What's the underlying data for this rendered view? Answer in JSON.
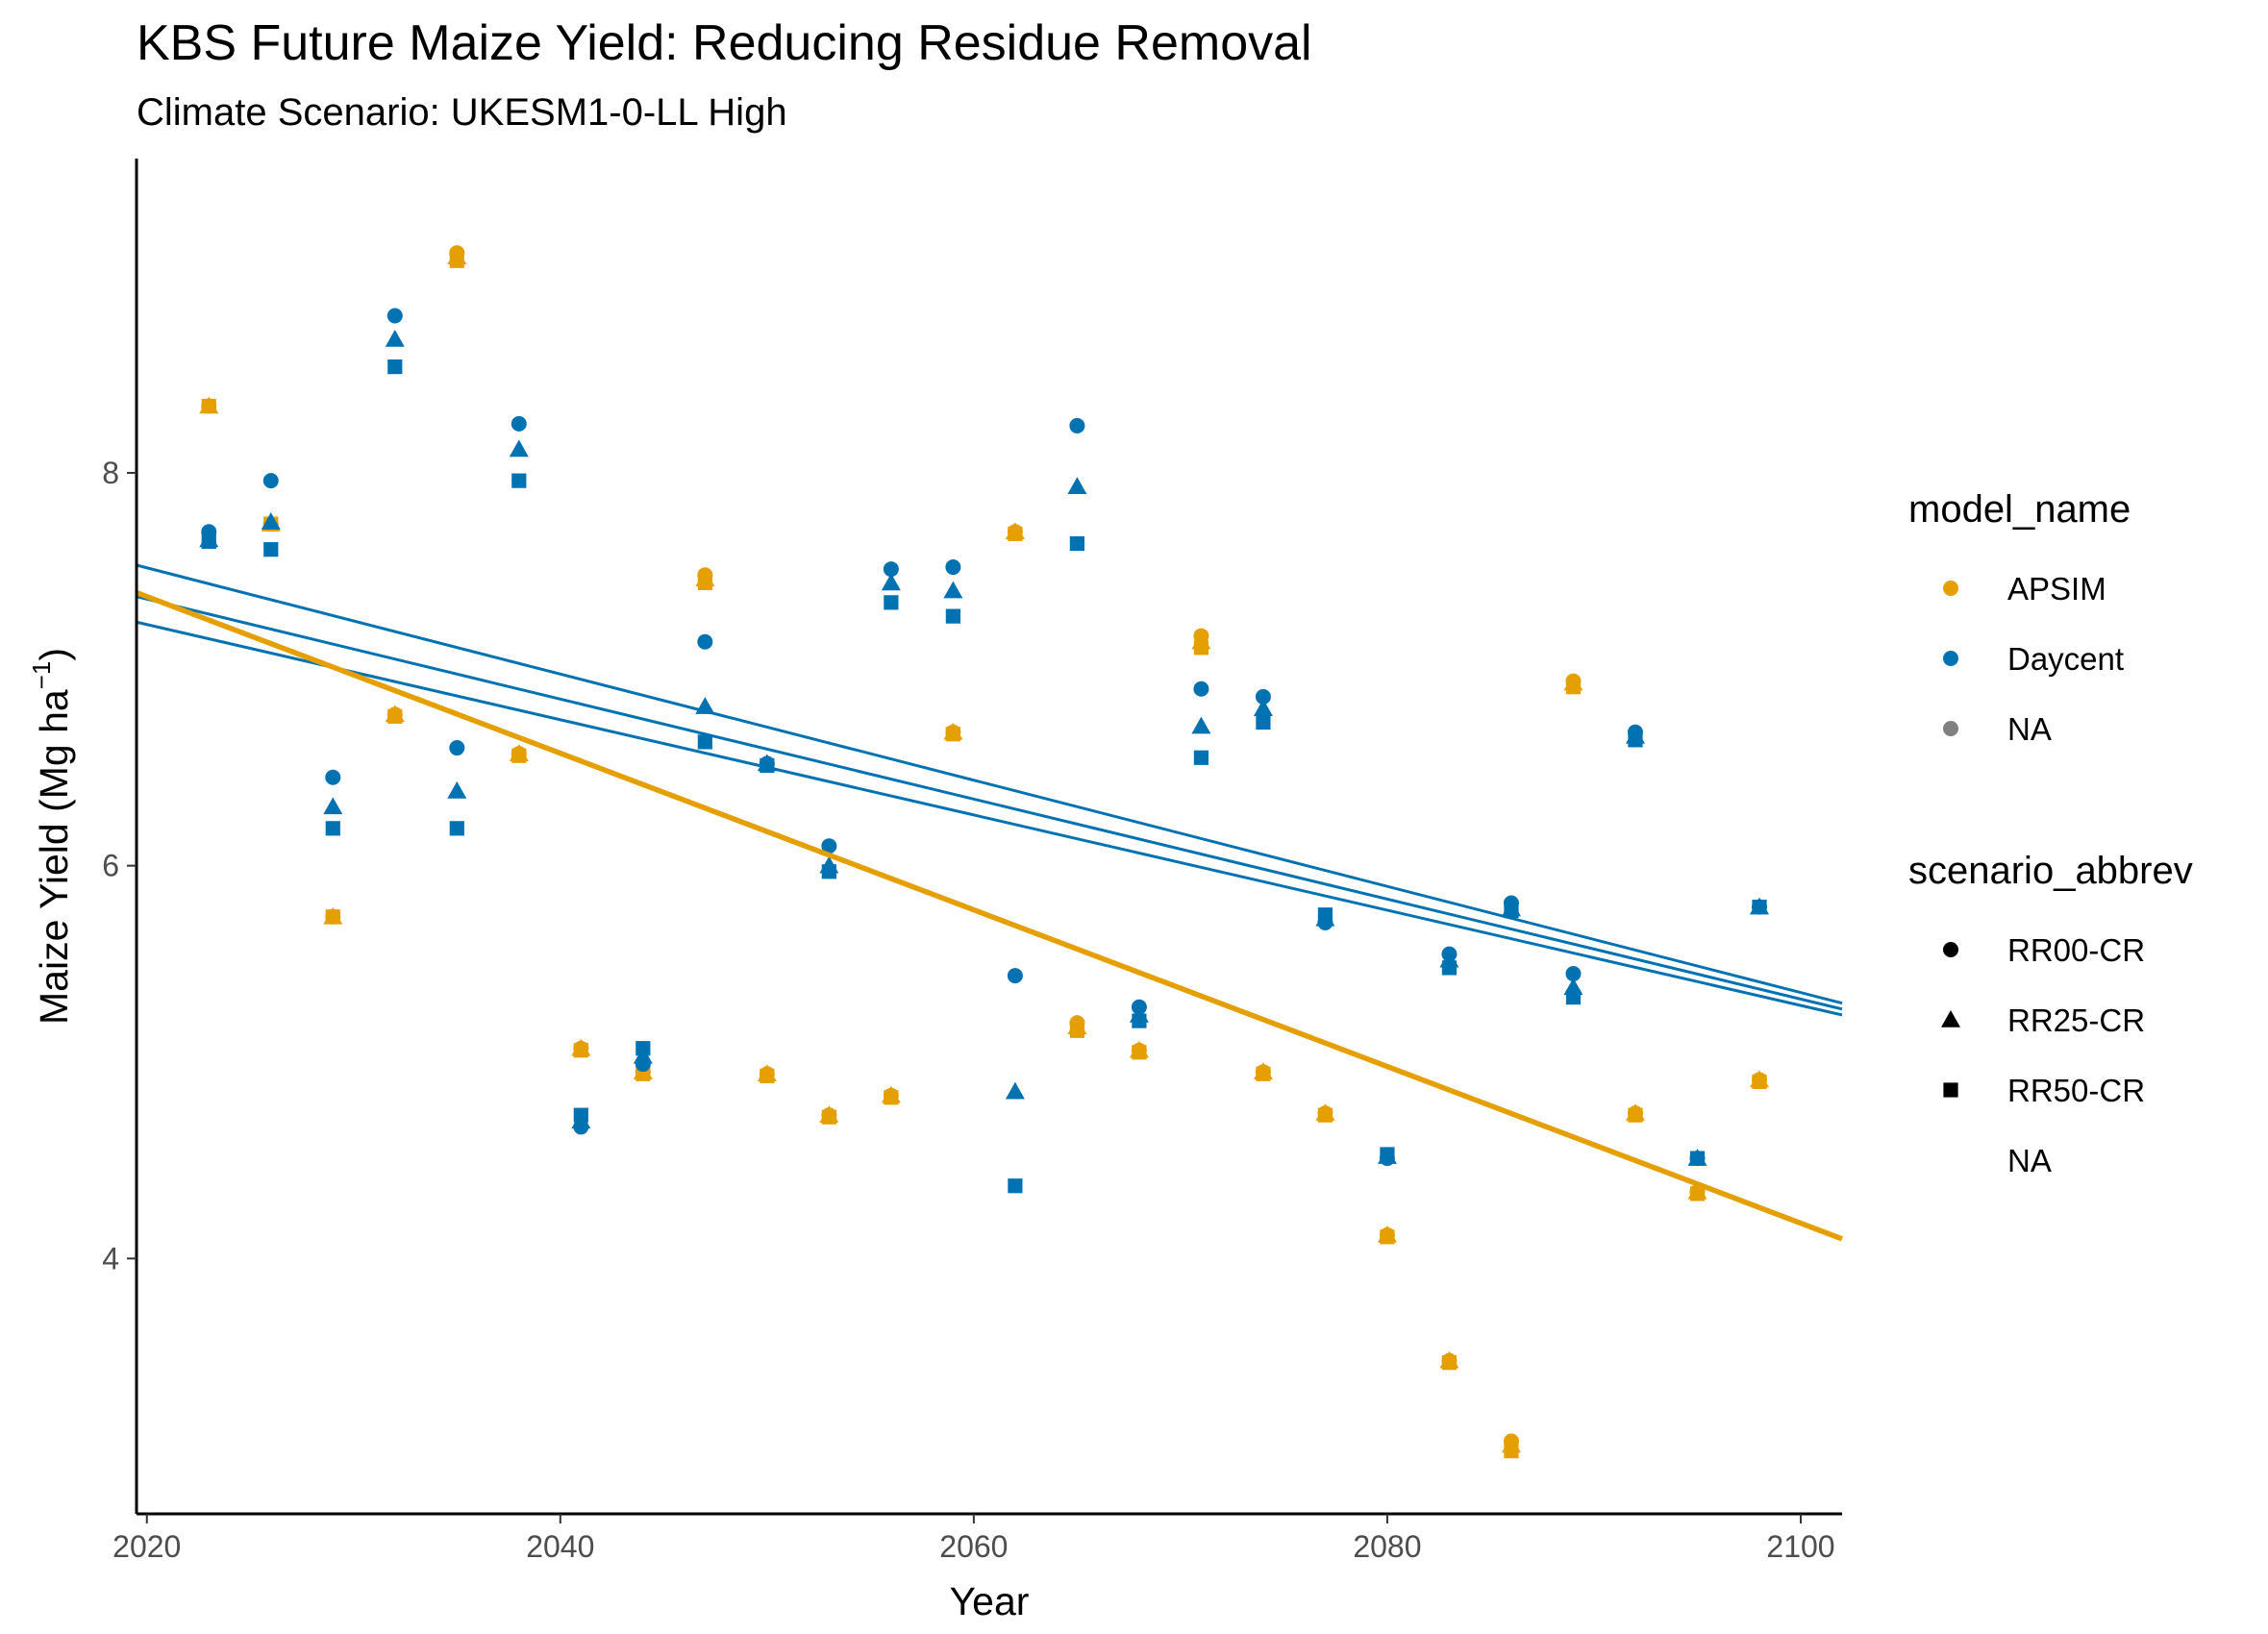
{
  "chart_data": {
    "type": "scatter",
    "title": "KBS Future Maize Yield: Reducing Residue Removal",
    "subtitle": "Climate Scenario: UKESM1-0-LL High",
    "xlabel": "Year",
    "ylabel_main": "Maize Yield (Mg ha",
    "ylabel_sup": "−1",
    "ylabel_end": ")",
    "xlim": [
      2019.5,
      2102
    ],
    "ylim": [
      2.7,
      9.6
    ],
    "xticks": [
      2020,
      2040,
      2060,
      2080,
      2100
    ],
    "yticks": [
      4,
      6,
      8
    ],
    "grid": false,
    "legend_position": "right",
    "colors": {
      "APSIM": "#E69F00",
      "Daycent": "#0072B2",
      "NA": "#808080"
    },
    "legend": {
      "color_title": "model_name",
      "color_items": [
        "APSIM",
        "Daycent",
        "NA"
      ],
      "shape_title": "scenario_abbrev",
      "shape_items": [
        {
          "label": "RR00-CR",
          "shape": "circle"
        },
        {
          "label": "RR25-CR",
          "shape": "triangle"
        },
        {
          "label": "RR50-CR",
          "shape": "square"
        },
        {
          "label": "NA",
          "shape": "none"
        }
      ]
    },
    "years": [
      2023,
      2026,
      2029,
      2032,
      2035,
      2038,
      2041,
      2044,
      2047,
      2050,
      2053,
      2056,
      2059,
      2062,
      2065,
      2068,
      2071,
      2074,
      2077,
      2080,
      2083,
      2086,
      2089,
      2092,
      2095,
      2098
    ],
    "series": [
      {
        "model": "APSIM",
        "scenario": "RR00-CR",
        "shape": "circle",
        "y": [
          8.34,
          7.74,
          5.74,
          6.77,
          9.12,
          6.57,
          5.07,
          4.95,
          7.48,
          4.94,
          4.73,
          4.83,
          6.68,
          7.7,
          5.2,
          5.06,
          7.17,
          4.95,
          4.74,
          4.12,
          3.48,
          3.07,
          6.94,
          4.74,
          4.34,
          4.91
        ]
      },
      {
        "model": "APSIM",
        "scenario": "RR25-CR",
        "shape": "triangle",
        "y": [
          8.34,
          7.74,
          5.74,
          6.77,
          9.1,
          6.57,
          5.07,
          4.95,
          7.46,
          4.94,
          4.73,
          4.83,
          6.68,
          7.7,
          5.18,
          5.06,
          7.14,
          4.95,
          4.74,
          4.12,
          3.48,
          3.05,
          6.93,
          4.74,
          4.34,
          4.91
        ]
      },
      {
        "model": "APSIM",
        "scenario": "RR50-CR",
        "shape": "square",
        "y": [
          8.34,
          7.74,
          5.74,
          6.76,
          9.08,
          6.56,
          5.06,
          4.94,
          7.44,
          4.93,
          4.72,
          4.82,
          6.67,
          7.69,
          5.16,
          5.05,
          7.11,
          4.94,
          4.73,
          4.11,
          3.47,
          3.02,
          6.91,
          4.73,
          4.33,
          4.9
        ]
      },
      {
        "model": "Daycent",
        "scenario": "RR00-CR",
        "shape": "circle",
        "y": [
          7.7,
          7.96,
          6.45,
          8.8,
          6.6,
          8.25,
          4.67,
          4.99,
          7.14,
          6.52,
          6.1,
          7.51,
          7.52,
          5.44,
          8.24,
          5.28,
          6.9,
          6.86,
          5.71,
          4.51,
          5.55,
          5.81,
          5.45,
          6.68,
          4.51,
          5.79
        ]
      },
      {
        "model": "Daycent",
        "scenario": "RR25-CR",
        "shape": "triangle",
        "y": [
          7.66,
          7.75,
          6.3,
          8.68,
          6.38,
          8.12,
          4.7,
          5.03,
          6.81,
          6.52,
          6.0,
          7.44,
          7.4,
          4.85,
          7.93,
          5.24,
          6.71,
          6.8,
          5.73,
          4.52,
          5.52,
          5.78,
          5.38,
          6.66,
          4.51,
          5.79
        ]
      },
      {
        "model": "Daycent",
        "scenario": "RR50-CR",
        "shape": "square",
        "y": [
          7.65,
          7.61,
          6.19,
          8.54,
          6.19,
          7.96,
          4.73,
          5.07,
          6.63,
          6.51,
          5.97,
          7.34,
          7.27,
          4.37,
          7.64,
          5.21,
          6.55,
          6.73,
          5.75,
          4.53,
          5.48,
          5.77,
          5.33,
          6.64,
          4.51,
          5.79
        ]
      }
    ],
    "trend_lines": [
      {
        "model": "Daycent",
        "x": [
          2019.5,
          2102
        ],
        "y": [
          7.53,
          5.3
        ],
        "width": 3
      },
      {
        "model": "Daycent",
        "x": [
          2019.5,
          2102
        ],
        "y": [
          7.37,
          5.27
        ],
        "width": 3
      },
      {
        "model": "Daycent",
        "x": [
          2019.5,
          2102
        ],
        "y": [
          7.24,
          5.24
        ],
        "width": 3
      },
      {
        "model": "APSIM",
        "x": [
          2019.5,
          2102
        ],
        "y": [
          7.39,
          4.1
        ],
        "width": 5.5
      }
    ]
  }
}
